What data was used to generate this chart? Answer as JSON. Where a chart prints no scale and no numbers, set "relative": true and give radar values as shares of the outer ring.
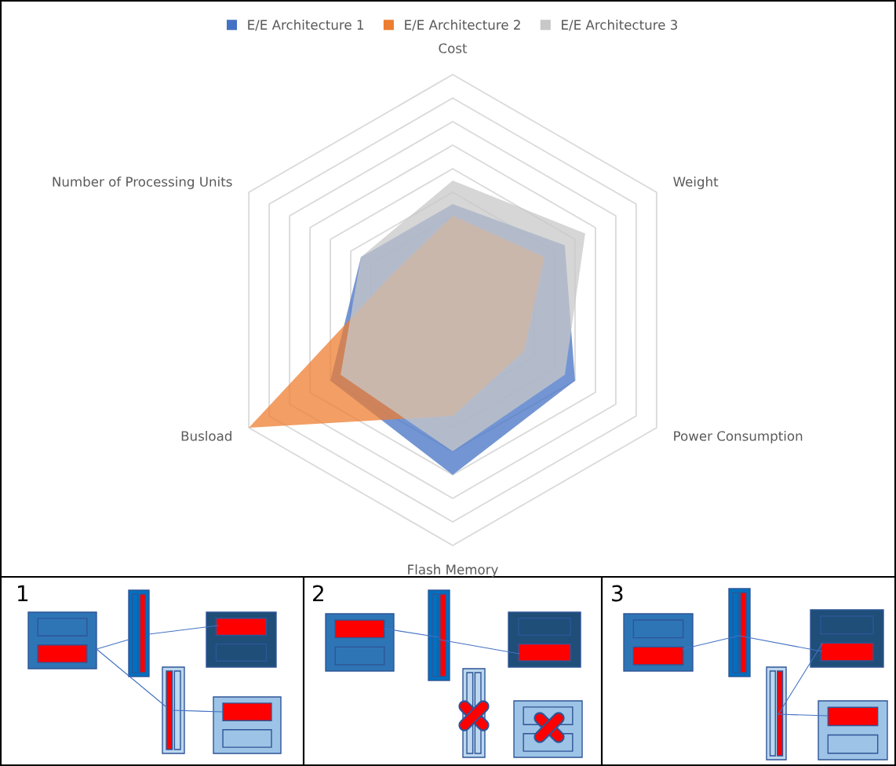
{
  "chart_data": {
    "type": "radar",
    "relative": true,
    "grid": true,
    "legend": "top",
    "categories": [
      "Cost",
      "Weight",
      "Power Consumption",
      "Flash Memory",
      "Busload",
      "Number of Processing Units"
    ],
    "series": [
      {
        "name": "E/E Architecture 1",
        "color": "#4472c4",
        "values": [
          0.45,
          0.55,
          0.6,
          0.7,
          0.6,
          0.45
        ]
      },
      {
        "name": "E/E Architecture 2",
        "color": "#ed7d31",
        "values": [
          0.4,
          0.45,
          0.35,
          0.45,
          1.0,
          0.3
        ]
      },
      {
        "name": "E/E Architecture 3",
        "color": "#c8c8c8",
        "values": [
          0.55,
          0.65,
          0.55,
          0.6,
          0.55,
          0.45
        ]
      }
    ],
    "annotations": [
      "1",
      "2",
      "3"
    ]
  }
}
